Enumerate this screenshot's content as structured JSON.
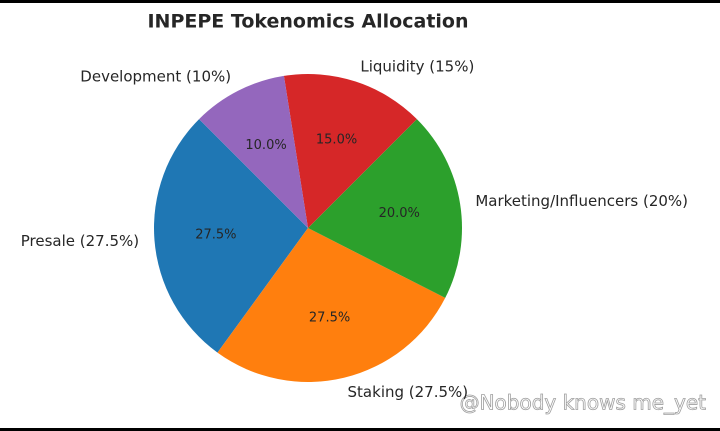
{
  "chart_data": {
    "type": "pie",
    "title": "INPEPE Tokenomics Allocation",
    "categories": [
      "Presale (27.5%)",
      "Staking (27.5%)",
      "Marketing/Influencers (20%)",
      "Liquidity (15%)",
      "Development (10%)"
    ],
    "values": [
      27.5,
      27.5,
      20,
      15,
      10
    ],
    "value_labels": [
      "27.5%",
      "27.5%",
      "20.0%",
      "15.0%",
      "10.0%"
    ],
    "colors": [
      "#1f77b4",
      "#ff7f0e",
      "#2ca02c",
      "#d62728",
      "#9467bd"
    ],
    "start_angle": 135
  },
  "watermark": "@Nobody knows me_yet"
}
